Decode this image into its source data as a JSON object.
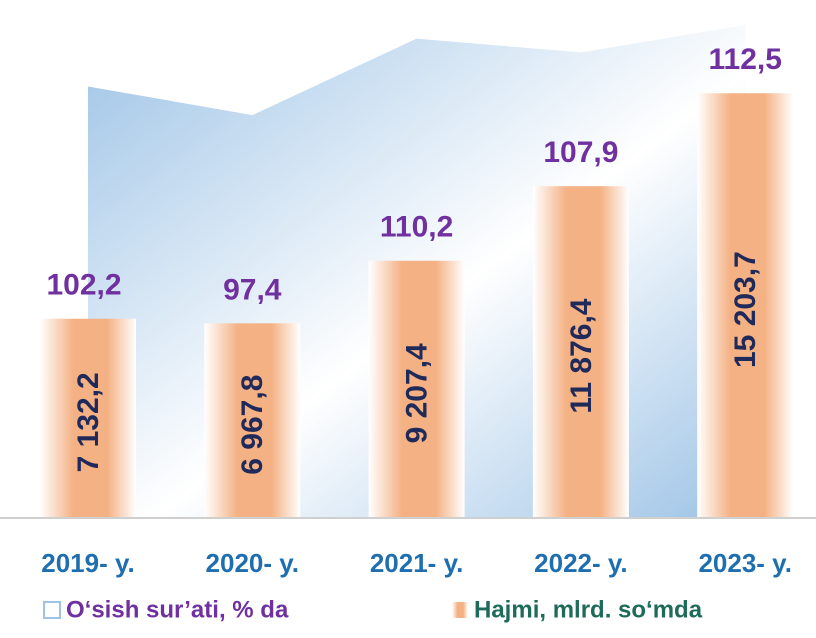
{
  "chart_data": {
    "type": "bar",
    "categories": [
      "2019- y.",
      "2020- y.",
      "2021- y.",
      "2022- y.",
      "2023- y."
    ],
    "series": [
      {
        "name": "O‘sish sur’ati, % da",
        "type": "area",
        "axis": "y2",
        "color": "#9dc3e6",
        "values": [
          102.2,
          97.4,
          110.2,
          107.9,
          112.5
        ],
        "value_labels": [
          "102,2",
          "97,4",
          "110,2",
          "107,9",
          "112,5"
        ]
      },
      {
        "name": "Hajmi, mlrd. so‘mda",
        "type": "bar",
        "color": "#f4b183",
        "values": [
          7132.2,
          6967.8,
          9207.4,
          11876.4,
          15203.7
        ],
        "value_labels": [
          "7 132,2",
          "6 967,8",
          "9 207,4",
          "11 876,4",
          "15 203,7"
        ]
      }
    ],
    "ylim": [
      0,
      16000
    ],
    "y2lim": [
      30,
      115
    ]
  }
}
